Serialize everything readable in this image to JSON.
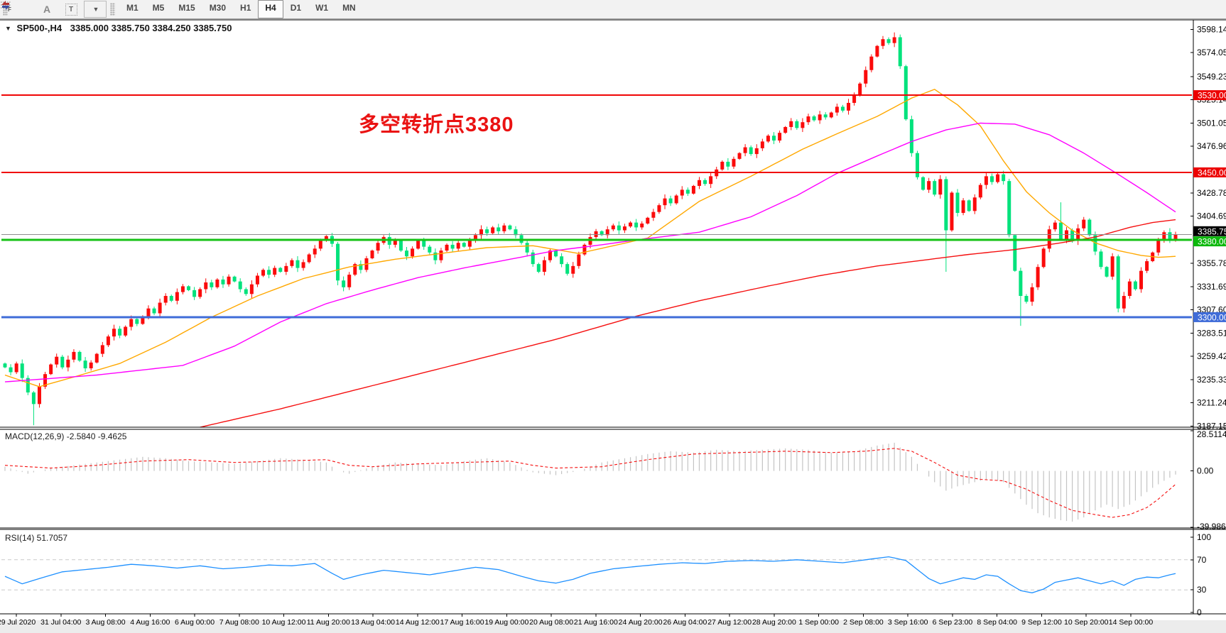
{
  "toolbar": {
    "tools": [
      {
        "name": "fibonacci",
        "icon": "fibonacci-icon"
      },
      {
        "name": "text",
        "icon": "text-a-icon",
        "glyph": "A"
      },
      {
        "name": "text-label",
        "icon": "text-label-icon",
        "glyph": "T"
      },
      {
        "name": "arrows",
        "icon": "arrows-icon"
      }
    ],
    "timeframes": [
      "M1",
      "M5",
      "M15",
      "M30",
      "H1",
      "H4",
      "D1",
      "W1",
      "MN"
    ],
    "active_timeframe": "H4"
  },
  "chart_header": {
    "symbol_period": "SP500-,H4",
    "ohlc": "3385.000 3385.750 3384.250 3385.750"
  },
  "annotation": {
    "text": "多空转折点3380",
    "color": "#ea1212"
  },
  "macd_label": "MACD(12,26,9) -2.5840 -9.4625",
  "rsi_label": "RSI(14) 51.7057",
  "price_axis": {
    "ticks": [
      "3598.140",
      "3574.050",
      "3549.230",
      "3525.140",
      "3501.050",
      "3476.960",
      "3428.780",
      "3404.690",
      "3355.780",
      "3331.690",
      "3307.600",
      "3283.510",
      "3259.420",
      "3235.330",
      "3211.240",
      "3187.150"
    ],
    "badges": [
      {
        "label": "3530.000",
        "value": 3530,
        "bg": "#ec0000",
        "fg": "#ffffff"
      },
      {
        "label": "3450.000",
        "value": 3450,
        "bg": "#ec0000",
        "fg": "#ffffff"
      },
      {
        "label": "3385.750",
        "value": 3385.75,
        "bg": "#000000",
        "fg": "#ffffff"
      },
      {
        "label": "3380.000",
        "value": 3380,
        "bg": "#0cb80c",
        "fg": "#ffffff"
      },
      {
        "label": "3300.000",
        "value": 3300,
        "bg": "#3f6cd8",
        "fg": "#ffffff"
      }
    ]
  },
  "macd_axis": [
    "28.5114",
    "0.00",
    "-39.9869"
  ],
  "rsi_axis": [
    "100",
    "70",
    "30",
    "0"
  ],
  "time_axis": [
    "29 Jul 2020",
    "31 Jul 04:00",
    "3 Aug 08:00",
    "4 Aug 16:00",
    "6 Aug 00:00",
    "7 Aug 08:00",
    "10 Aug 12:00",
    "11 Aug 20:00",
    "13 Aug 04:00",
    "14 Aug 12:00",
    "17 Aug 16:00",
    "19 Aug 00:00",
    "20 Aug 08:00",
    "21 Aug 16:00",
    "24 Aug 20:00",
    "26 Aug 04:00",
    "27 Aug 12:00",
    "28 Aug 20:00",
    "1 Sep 00:00",
    "2 Sep 08:00",
    "3 Sep 16:00",
    "6 Sep 23:00",
    "8 Sep 04:00",
    "9 Sep 12:00",
    "10 Sep 20:00",
    "14 Sep 00:00"
  ],
  "chart_data": {
    "type": "candlestick",
    "symbol": "SP500",
    "period": "H4",
    "title": "SP500-,H4",
    "up_color": "#fb0b0b",
    "down_color": "#00e27c",
    "price_range": [
      3186,
      3608
    ],
    "first_open": 3252,
    "closes": [
      3248,
      3243,
      3252,
      3237,
      3222,
      3210,
      3228,
      3241,
      3251,
      3259,
      3248,
      3256,
      3264,
      3255,
      3247,
      3253,
      3262,
      3271,
      3280,
      3288,
      3281,
      3290,
      3298,
      3293,
      3301,
      3309,
      3304,
      3315,
      3322,
      3317,
      3326,
      3332,
      3328,
      3321,
      3329,
      3336,
      3331,
      3339,
      3334,
      3342,
      3337,
      3329,
      3324,
      3334,
      3343,
      3349,
      3344,
      3351,
      3347,
      3353,
      3359,
      3351,
      3357,
      3365,
      3371,
      3379,
      3384,
      3376,
      3338,
      3331,
      3344,
      3355,
      3349,
      3361,
      3369,
      3377,
      3383,
      3375,
      3379,
      3369,
      3363,
      3371,
      3379,
      3373,
      3367,
      3359,
      3369,
      3375,
      3371,
      3377,
      3373,
      3379,
      3385,
      3391,
      3387,
      3393,
      3389,
      3395,
      3391,
      3385,
      3377,
      3367,
      3355,
      3347,
      3359,
      3369,
      3363,
      3355,
      3345,
      3353,
      3365,
      3375,
      3383,
      3389,
      3385,
      3391,
      3395,
      3390,
      3394,
      3398,
      3393,
      3397,
      3403,
      3409,
      3416,
      3423,
      3418,
      3426,
      3432,
      3428,
      3436,
      3442,
      3438,
      3446,
      3453,
      3461,
      3456,
      3464,
      3470,
      3476,
      3469,
      3475,
      3482,
      3488,
      3483,
      3491,
      3497,
      3503,
      3496,
      3502,
      3508,
      3504,
      3510,
      3507,
      3512,
      3518,
      3514,
      3522,
      3530,
      3542,
      3556,
      3570,
      3581,
      3588,
      3584,
      3590,
      3560,
      3505,
      3470,
      3445,
      3432,
      3441,
      3427,
      3443,
      3390,
      3429,
      3408,
      3421,
      3410,
      3424,
      3437,
      3446,
      3440,
      3448,
      3441,
      3385,
      3348,
      3322,
      3316,
      3331,
      3352,
      3371,
      3391,
      3398,
      3380,
      3390,
      3379,
      3392,
      3401,
      3385,
      3368,
      3352,
      3342,
      3363,
      3309,
      3322,
      3337,
      3329,
      3348,
      3358,
      3367,
      3379,
      3388,
      3381,
      3385.75
    ],
    "wick_overrides": {
      "5": {
        "low": 3188
      },
      "58": {
        "low": 3333
      },
      "155": {
        "high": 3595
      },
      "164": {
        "low": 3347
      },
      "177": {
        "low": 3291
      },
      "184": {
        "high": 3419
      },
      "194": {
        "low": 3305
      }
    },
    "h_lines": [
      {
        "value": 3530,
        "color": "#f00505",
        "width": 2
      },
      {
        "value": 3450,
        "color": "#f00505",
        "width": 2
      },
      {
        "value": 3380,
        "color": "#16c216",
        "width": 3
      },
      {
        "value": 3300,
        "color": "#3f6cd8",
        "width": 3
      }
    ],
    "current_price": {
      "value": 3385.75,
      "label": "3385.750",
      "line_color": "#8e8e8e"
    },
    "ma_lines": [
      {
        "name": "ma-fast",
        "color": "#ffa800",
        "anchors": [
          [
            0,
            3240
          ],
          [
            6,
            3228
          ],
          [
            12,
            3238
          ],
          [
            20,
            3252
          ],
          [
            28,
            3274
          ],
          [
            36,
            3300
          ],
          [
            44,
            3322
          ],
          [
            52,
            3340
          ],
          [
            60,
            3352
          ],
          [
            68,
            3360
          ],
          [
            76,
            3366
          ],
          [
            84,
            3372
          ],
          [
            92,
            3374
          ],
          [
            100,
            3366
          ],
          [
            106,
            3374
          ],
          [
            112,
            3382
          ],
          [
            121,
            3420
          ],
          [
            130,
            3446
          ],
          [
            139,
            3474
          ],
          [
            145,
            3490
          ],
          [
            152,
            3508
          ],
          [
            158,
            3527
          ],
          [
            162,
            3536
          ],
          [
            166,
            3520
          ],
          [
            170,
            3498
          ],
          [
            174,
            3462
          ],
          [
            178,
            3430
          ],
          [
            182,
            3408
          ],
          [
            186,
            3390
          ],
          [
            190,
            3377
          ],
          [
            194,
            3369
          ],
          [
            198,
            3364
          ],
          [
            201,
            3362
          ],
          [
            204,
            3363
          ]
        ]
      },
      {
        "name": "ma-medium",
        "color": "#ff00ff",
        "anchors": [
          [
            0,
            3233
          ],
          [
            16,
            3240
          ],
          [
            31,
            3250
          ],
          [
            40,
            3270
          ],
          [
            48,
            3295
          ],
          [
            56,
            3314
          ],
          [
            64,
            3328
          ],
          [
            72,
            3341
          ],
          [
            80,
            3351
          ],
          [
            88,
            3360
          ],
          [
            96,
            3369
          ],
          [
            104,
            3375
          ],
          [
            110,
            3380
          ],
          [
            121,
            3388
          ],
          [
            130,
            3404
          ],
          [
            138,
            3426
          ],
          [
            145,
            3449
          ],
          [
            152,
            3467
          ],
          [
            158,
            3482
          ],
          [
            164,
            3494
          ],
          [
            170,
            3501
          ],
          [
            176,
            3500
          ],
          [
            182,
            3489
          ],
          [
            188,
            3470
          ],
          [
            194,
            3448
          ],
          [
            199,
            3429
          ],
          [
            204,
            3409
          ]
        ]
      },
      {
        "name": "ma-slow",
        "color": "#f50f0f",
        "anchors": [
          [
            34,
            3186
          ],
          [
            48,
            3205
          ],
          [
            60,
            3223
          ],
          [
            72,
            3241
          ],
          [
            84,
            3259
          ],
          [
            96,
            3277
          ],
          [
            110,
            3301
          ],
          [
            121,
            3317
          ],
          [
            132,
            3331
          ],
          [
            142,
            3343
          ],
          [
            152,
            3353
          ],
          [
            160,
            3359
          ],
          [
            168,
            3365
          ],
          [
            176,
            3370
          ],
          [
            184,
            3377
          ],
          [
            190,
            3383
          ],
          [
            196,
            3393
          ],
          [
            200,
            3398
          ],
          [
            204,
            3401
          ]
        ]
      }
    ],
    "macd": {
      "label": "MACD(12,26,9)",
      "main_value": -2.584,
      "signal_value": -9.4625,
      "range": [
        -39.9869,
        28.5114
      ],
      "histogram_color": "#c4c4c4",
      "signal_color": "#f50f0f",
      "histogram_anchors": [
        [
          0,
          3
        ],
        [
          4,
          -2
        ],
        [
          8,
          2
        ],
        [
          12,
          4
        ],
        [
          16,
          6
        ],
        [
          20,
          8
        ],
        [
          24,
          10
        ],
        [
          28,
          9
        ],
        [
          32,
          7
        ],
        [
          36,
          6
        ],
        [
          40,
          5
        ],
        [
          44,
          7
        ],
        [
          48,
          9
        ],
        [
          52,
          8
        ],
        [
          56,
          6
        ],
        [
          58,
          0
        ],
        [
          60,
          -2
        ],
        [
          64,
          3
        ],
        [
          68,
          6
        ],
        [
          72,
          5
        ],
        [
          76,
          4
        ],
        [
          80,
          7
        ],
        [
          84,
          9
        ],
        [
          88,
          6
        ],
        [
          92,
          -1
        ],
        [
          96,
          -3
        ],
        [
          100,
          0
        ],
        [
          104,
          6
        ],
        [
          108,
          9
        ],
        [
          112,
          12
        ],
        [
          116,
          14
        ],
        [
          120,
          13
        ],
        [
          124,
          15
        ],
        [
          128,
          14
        ],
        [
          132,
          15
        ],
        [
          136,
          16
        ],
        [
          140,
          15
        ],
        [
          144,
          13
        ],
        [
          148,
          14
        ],
        [
          152,
          18
        ],
        [
          155,
          20
        ],
        [
          158,
          10
        ],
        [
          160,
          0
        ],
        [
          162,
          -8
        ],
        [
          164,
          -14
        ],
        [
          166,
          -11
        ],
        [
          168,
          -9
        ],
        [
          170,
          -7
        ],
        [
          172,
          -6
        ],
        [
          174,
          -8
        ],
        [
          176,
          -16
        ],
        [
          178,
          -24
        ],
        [
          180,
          -30
        ],
        [
          182,
          -33
        ],
        [
          184,
          -35
        ],
        [
          186,
          -36
        ],
        [
          188,
          -33
        ],
        [
          190,
          -28
        ],
        [
          192,
          -24
        ],
        [
          194,
          -27
        ],
        [
          196,
          -24
        ],
        [
          198,
          -18
        ],
        [
          200,
          -12
        ],
        [
          202,
          -7
        ],
        [
          204,
          -2.6
        ]
      ],
      "signal_anchors": [
        [
          0,
          4
        ],
        [
          8,
          2
        ],
        [
          16,
          4
        ],
        [
          24,
          7
        ],
        [
          32,
          8
        ],
        [
          40,
          6
        ],
        [
          48,
          7
        ],
        [
          56,
          8
        ],
        [
          60,
          4
        ],
        [
          64,
          3
        ],
        [
          72,
          5
        ],
        [
          80,
          6
        ],
        [
          88,
          7
        ],
        [
          92,
          4
        ],
        [
          96,
          2
        ],
        [
          104,
          3
        ],
        [
          112,
          8
        ],
        [
          120,
          12
        ],
        [
          128,
          13
        ],
        [
          136,
          14
        ],
        [
          144,
          13
        ],
        [
          150,
          14
        ],
        [
          155,
          16
        ],
        [
          158,
          14
        ],
        [
          162,
          6
        ],
        [
          166,
          -3
        ],
        [
          170,
          -6
        ],
        [
          174,
          -7
        ],
        [
          178,
          -13
        ],
        [
          182,
          -21
        ],
        [
          186,
          -28
        ],
        [
          190,
          -31
        ],
        [
          193,
          -33
        ],
        [
          196,
          -31
        ],
        [
          199,
          -26
        ],
        [
          201,
          -20
        ],
        [
          203,
          -13
        ],
        [
          204,
          -9.5
        ]
      ]
    },
    "rsi": {
      "label": "RSI(14)",
      "value": 51.7057,
      "range": [
        0,
        100
      ],
      "levels": [
        70,
        30
      ],
      "color": "#1e90ff",
      "anchors": [
        [
          0,
          48
        ],
        [
          3,
          38
        ],
        [
          6,
          45
        ],
        [
          10,
          54
        ],
        [
          14,
          57
        ],
        [
          18,
          60
        ],
        [
          22,
          64
        ],
        [
          26,
          62
        ],
        [
          30,
          59
        ],
        [
          34,
          62
        ],
        [
          38,
          58
        ],
        [
          42,
          60
        ],
        [
          46,
          63
        ],
        [
          50,
          62
        ],
        [
          54,
          65
        ],
        [
          57,
          52
        ],
        [
          59,
          44
        ],
        [
          62,
          50
        ],
        [
          66,
          56
        ],
        [
          70,
          53
        ],
        [
          74,
          50
        ],
        [
          78,
          55
        ],
        [
          82,
          60
        ],
        [
          86,
          57
        ],
        [
          90,
          48
        ],
        [
          93,
          42
        ],
        [
          96,
          39
        ],
        [
          99,
          44
        ],
        [
          102,
          52
        ],
        [
          106,
          58
        ],
        [
          110,
          61
        ],
        [
          114,
          64
        ],
        [
          118,
          66
        ],
        [
          122,
          65
        ],
        [
          126,
          68
        ],
        [
          130,
          69
        ],
        [
          134,
          68
        ],
        [
          138,
          70
        ],
        [
          142,
          68
        ],
        [
          146,
          66
        ],
        [
          150,
          70
        ],
        [
          154,
          74
        ],
        [
          157,
          69
        ],
        [
          159,
          57
        ],
        [
          161,
          45
        ],
        [
          163,
          38
        ],
        [
          165,
          42
        ],
        [
          167,
          46
        ],
        [
          169,
          44
        ],
        [
          171,
          50
        ],
        [
          173,
          48
        ],
        [
          175,
          38
        ],
        [
          177,
          29
        ],
        [
          179,
          26
        ],
        [
          181,
          31
        ],
        [
          183,
          40
        ],
        [
          185,
          43
        ],
        [
          187,
          46
        ],
        [
          189,
          42
        ],
        [
          191,
          38
        ],
        [
          193,
          42
        ],
        [
          195,
          36
        ],
        [
          197,
          44
        ],
        [
          199,
          47
        ],
        [
          201,
          46
        ],
        [
          203,
          50
        ],
        [
          204,
          51.7
        ]
      ]
    }
  }
}
